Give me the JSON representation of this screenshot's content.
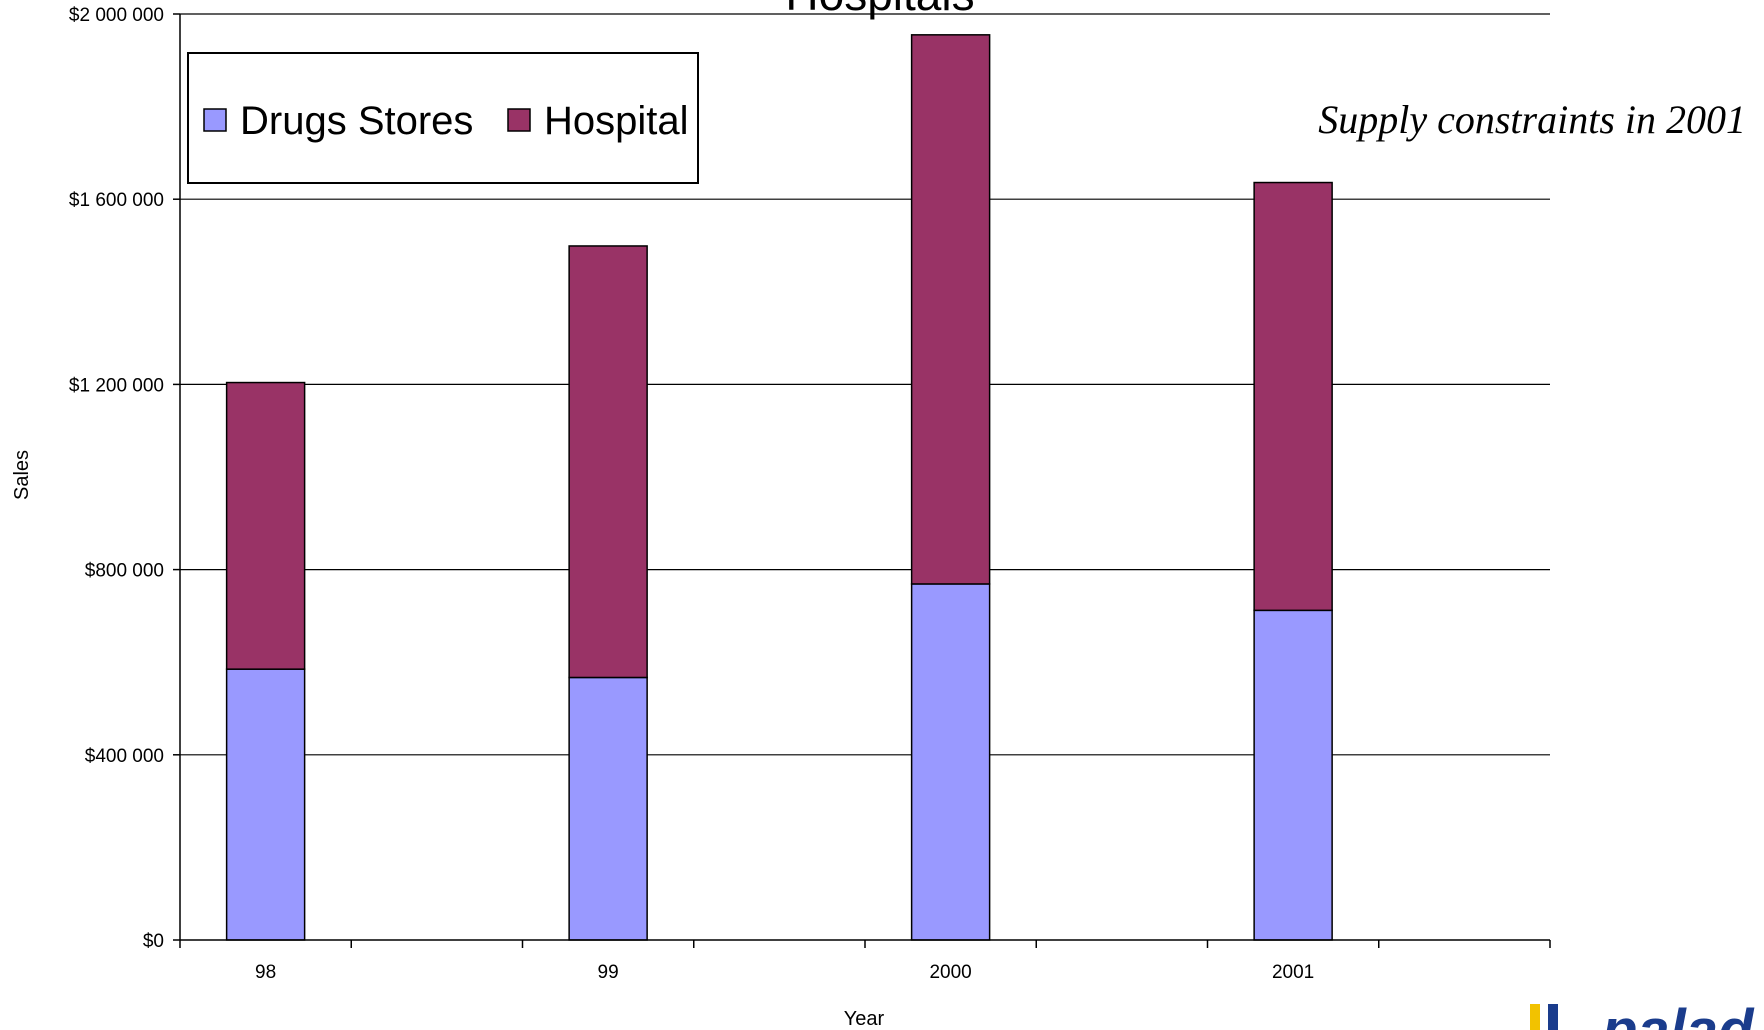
{
  "chart_data": {
    "type": "bar",
    "stacked": true,
    "title": "Hospitals",
    "xlabel": "Year",
    "ylabel": "Sales",
    "categories": [
      "98",
      "99",
      "2000",
      "2001"
    ],
    "series": [
      {
        "name": "Drugs Stores",
        "color": "#9999ff",
        "values": [
          585000,
          567000,
          769000,
          712000
        ]
      },
      {
        "name": "Hospital",
        "color": "#993366",
        "values": [
          619000,
          932000,
          1186000,
          924000
        ]
      }
    ],
    "ylim": [
      0,
      2000000
    ],
    "yticks": [
      0,
      400000,
      800000,
      1200000,
      1600000,
      2000000
    ],
    "ytick_labels": [
      "$0",
      "$400 000",
      "$800 000",
      "$1 200 000",
      "$1 600 000",
      "$2 000 000"
    ],
    "grid": true,
    "legend_position": "top-left",
    "annotation": "Supply constraints in 2001"
  },
  "logo": {
    "text": "palad",
    "color": "#1a3c8c",
    "accent": "#f2c200"
  }
}
